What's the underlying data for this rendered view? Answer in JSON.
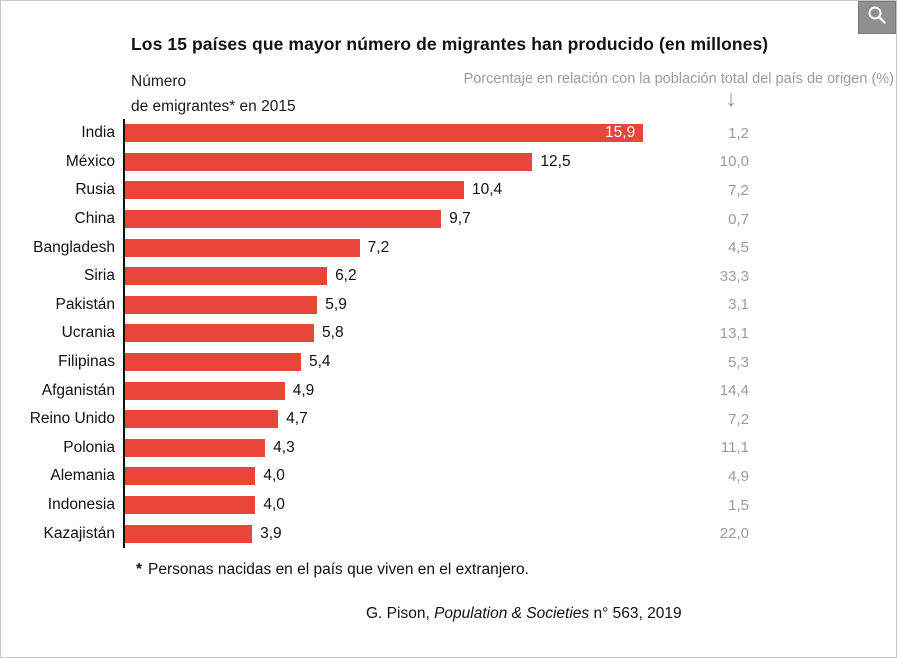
{
  "header": {
    "title": "Los 15 países que mayor número de migrantes han producido (en millones)",
    "unit_label_line1": "Número",
    "unit_label_line2": "de emigrantes* en 2015",
    "pct_column_label": "Porcentaje en relación con la población total del país de origen (%)",
    "down_arrow_glyph": "↓"
  },
  "chart_data": {
    "type": "bar",
    "orientation": "horizontal",
    "title": "Los 15 países que mayor número de migrantes han producido (en millones)",
    "xlabel": "Número de emigrantes en 2015 (millones)",
    "xlim": [
      0,
      16.2
    ],
    "grid": false,
    "bar_color": "#e8463a",
    "categories": [
      "India",
      "México",
      "Rusia",
      "China",
      "Bangladesh",
      "Siria",
      "Pakistán",
      "Ucrania",
      "Filipinas",
      "Afganistán",
      "Reino Unido",
      "Polonia",
      "Alemania",
      "Indonesia",
      "Kazajistán"
    ],
    "series": [
      {
        "name": "Número de emigrantes en 2015 (millones)",
        "values": [
          15.9,
          12.5,
          10.4,
          9.7,
          7.2,
          6.2,
          5.9,
          5.8,
          5.4,
          4.9,
          4.7,
          4.3,
          4.0,
          4.0,
          3.9
        ]
      },
      {
        "name": "Porcentaje en relación con la población total del país de origen (%)",
        "values": [
          1.2,
          10.0,
          7.2,
          0.7,
          4.5,
          33.3,
          3.1,
          13.1,
          5.3,
          14.4,
          7.2,
          11.1,
          4.9,
          1.5,
          22.0
        ]
      }
    ],
    "scale_max": 16.2,
    "rows": [
      {
        "country": "India",
        "value": 15.9,
        "value_label": "15,9",
        "pct_label": "1,2",
        "label_inside": true
      },
      {
        "country": "México",
        "value": 12.5,
        "value_label": "12,5",
        "pct_label": "10,0",
        "label_inside": false
      },
      {
        "country": "Rusia",
        "value": 10.4,
        "value_label": "10,4",
        "pct_label": "7,2",
        "label_inside": false
      },
      {
        "country": "China",
        "value": 9.7,
        "value_label": "9,7",
        "pct_label": "0,7",
        "label_inside": false
      },
      {
        "country": "Bangladesh",
        "value": 7.2,
        "value_label": "7,2",
        "pct_label": "4,5",
        "label_inside": false
      },
      {
        "country": "Siria",
        "value": 6.2,
        "value_label": "6,2",
        "pct_label": "33,3",
        "label_inside": false
      },
      {
        "country": "Pakistán",
        "value": 5.9,
        "value_label": "5,9",
        "pct_label": "3,1",
        "label_inside": false
      },
      {
        "country": "Ucrania",
        "value": 5.8,
        "value_label": "5,8",
        "pct_label": "13,1",
        "label_inside": false
      },
      {
        "country": "Filipinas",
        "value": 5.4,
        "value_label": "5,4",
        "pct_label": "5,3",
        "label_inside": false
      },
      {
        "country": "Afganistán",
        "value": 4.9,
        "value_label": "4,9",
        "pct_label": "14,4",
        "label_inside": false
      },
      {
        "country": "Reino Unido",
        "value": 4.7,
        "value_label": "4,7",
        "pct_label": "7,2",
        "label_inside": false
      },
      {
        "country": "Polonia",
        "value": 4.3,
        "value_label": "4,3",
        "pct_label": "11,1",
        "label_inside": false
      },
      {
        "country": "Alemania",
        "value": 4.0,
        "value_label": "4,0",
        "pct_label": "4,9",
        "label_inside": false
      },
      {
        "country": "Indonesia",
        "value": 4.0,
        "value_label": "4,0",
        "pct_label": "1,5",
        "label_inside": false
      },
      {
        "country": "Kazajistán",
        "value": 3.9,
        "value_label": "3,9",
        "pct_label": "22,0",
        "label_inside": false
      }
    ]
  },
  "footnote": {
    "marker": "*",
    "text": "Personas nacidas en el país que viven en el extranjero."
  },
  "source": {
    "prefix": "G. Pison, ",
    "title_italic": "Population & Societies",
    "suffix": " n° 563, 2019"
  }
}
